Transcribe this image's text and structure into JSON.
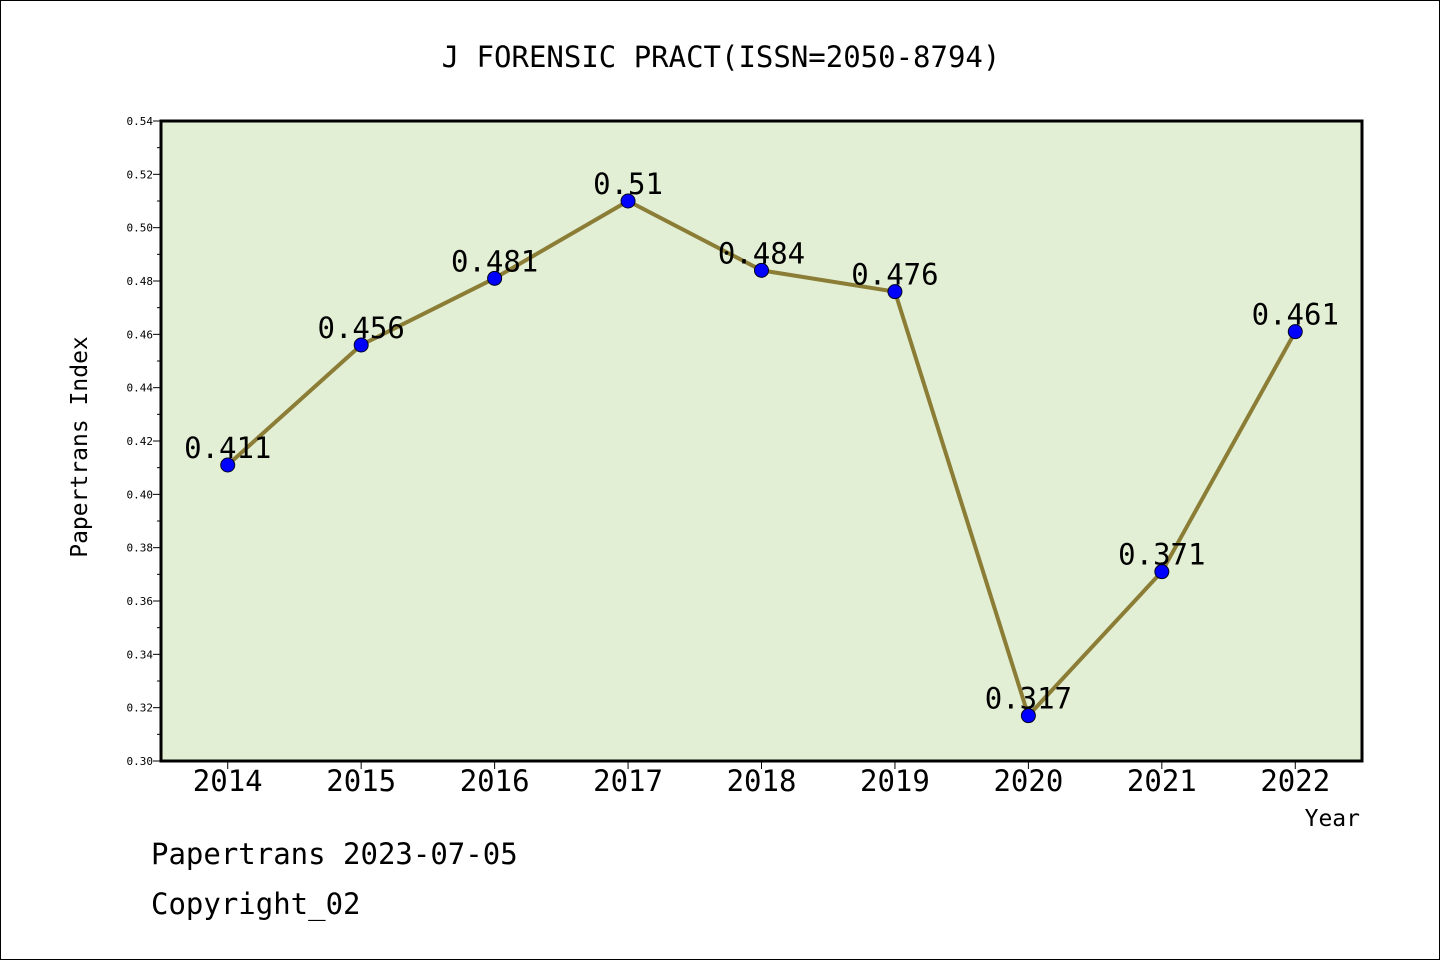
{
  "footer": {
    "line1": "Papertrans 2023-07-05",
    "line2": "Copyright_02"
  },
  "chart_data": {
    "type": "line",
    "title": "J FORENSIC PRACT(ISSN=2050-8794)",
    "xlabel": "Year",
    "ylabel": "Papertrans Index",
    "categories": [
      "2014",
      "2015",
      "2016",
      "2017",
      "2018",
      "2019",
      "2020",
      "2021",
      "2022"
    ],
    "series": [
      {
        "values": [
          0.411,
          0.456,
          0.481,
          0.51,
          0.484,
          0.476,
          0.317,
          0.371,
          0.461
        ],
        "labels": [
          "0.411",
          "0.456",
          "0.481",
          "0.51",
          "0.484",
          "0.476",
          "0.317",
          "0.371",
          "0.461"
        ]
      }
    ],
    "ylim": [
      0.3,
      0.54
    ],
    "yticks": [
      "0.30",
      "0.32",
      "0.34",
      "0.36",
      "0.38",
      "0.40",
      "0.42",
      "0.44",
      "0.46",
      "0.48",
      "0.50",
      "0.52",
      "0.54"
    ],
    "grid": false,
    "legend": "none",
    "colors": {
      "plot_background": "#e2efd4",
      "line": "#8b7d35",
      "marker": "#0000ff"
    }
  }
}
